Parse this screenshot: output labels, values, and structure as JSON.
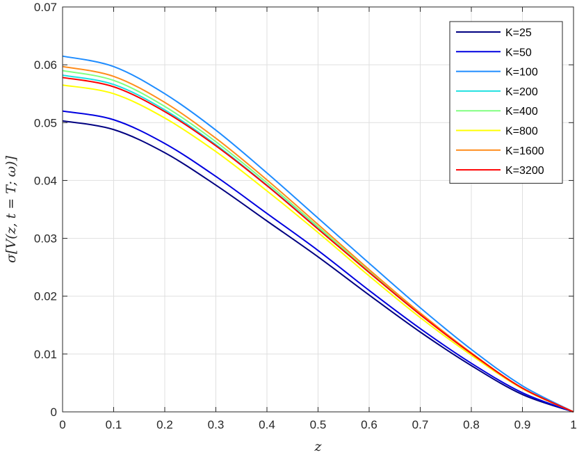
{
  "chart_data": {
    "type": "line",
    "title": "",
    "xlabel": "z",
    "ylabel": "σ[V(z, t = T; ω)]",
    "xlim": [
      0,
      1
    ],
    "ylim": [
      0,
      0.07
    ],
    "x_ticks": [
      "0",
      "0.1",
      "0.2",
      "0.3",
      "0.4",
      "0.5",
      "0.6",
      "0.7",
      "0.8",
      "0.9",
      "1"
    ],
    "y_ticks": [
      "0",
      "0.01",
      "0.02",
      "0.03",
      "0.04",
      "0.05",
      "0.06",
      "0.07"
    ],
    "grid": true,
    "legend_position": "top-right",
    "x": [
      0,
      0.1,
      0.2,
      0.3,
      0.4,
      0.5,
      0.6,
      0.7,
      0.8,
      0.9,
      1.0
    ],
    "series": [
      {
        "name": "K=25",
        "color": "#000080",
        "values": [
          0.0503,
          0.0488,
          0.0448,
          0.0392,
          0.033,
          0.0268,
          0.0202,
          0.0138,
          0.008,
          0.003,
          0.0
        ]
      },
      {
        "name": "K=50",
        "color": "#0000e0",
        "values": [
          0.052,
          0.0505,
          0.0464,
          0.0407,
          0.0343,
          0.0279,
          0.021,
          0.0144,
          0.0084,
          0.0033,
          0.0
        ]
      },
      {
        "name": "K=100",
        "color": "#1e8cff",
        "values": [
          0.0615,
          0.0597,
          0.055,
          0.0487,
          0.0413,
          0.0335,
          0.0257,
          0.018,
          0.0108,
          0.0045,
          0.0
        ]
      },
      {
        "name": "K=200",
        "color": "#20e0e0",
        "values": [
          0.0582,
          0.0566,
          0.0522,
          0.0462,
          0.0392,
          0.0317,
          0.0241,
          0.0168,
          0.0101,
          0.0041,
          0.0
        ]
      },
      {
        "name": "K=400",
        "color": "#80ff80",
        "values": [
          0.059,
          0.0573,
          0.0528,
          0.0467,
          0.0396,
          0.032,
          0.0243,
          0.0169,
          0.0101,
          0.0041,
          0.0
        ]
      },
      {
        "name": "K=800",
        "color": "#ffff00",
        "values": [
          0.0565,
          0.055,
          0.0508,
          0.045,
          0.0382,
          0.031,
          0.0235,
          0.0163,
          0.0098,
          0.004,
          0.0
        ]
      },
      {
        "name": "K=1600",
        "color": "#ff8c1a",
        "values": [
          0.0597,
          0.058,
          0.0535,
          0.0473,
          0.0401,
          0.0324,
          0.0246,
          0.0171,
          0.0102,
          0.0041,
          0.0
        ]
      },
      {
        "name": "K=3200",
        "color": "#ff0000",
        "values": [
          0.0578,
          0.0562,
          0.0519,
          0.046,
          0.0391,
          0.0316,
          0.0241,
          0.0168,
          0.0101,
          0.0041,
          0.0
        ]
      }
    ]
  }
}
